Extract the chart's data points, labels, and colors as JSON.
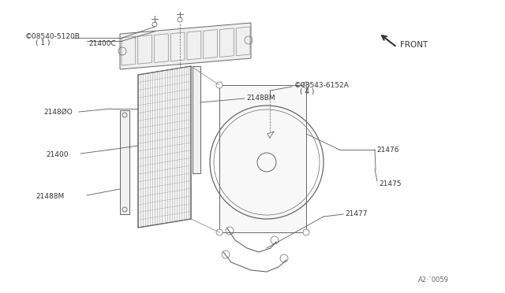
{
  "bg_color": "#ffffff",
  "line_color": "#666666",
  "parts": {
    "21400C": "21400C",
    "08540-5120B": "©08540-5120B",
    "label_1": "( 1 )",
    "21480O": "2148ØO",
    "21400": "21400",
    "21488M": "21488M",
    "2148BM": "2148BM",
    "08543-6152A": "©08543-6152A",
    "label_4": "( 4 )",
    "21476": "21476",
    "21475": "21475",
    "21477": "21477"
  },
  "diagram_id": "A2·´0059",
  "front_label": "FRONT"
}
